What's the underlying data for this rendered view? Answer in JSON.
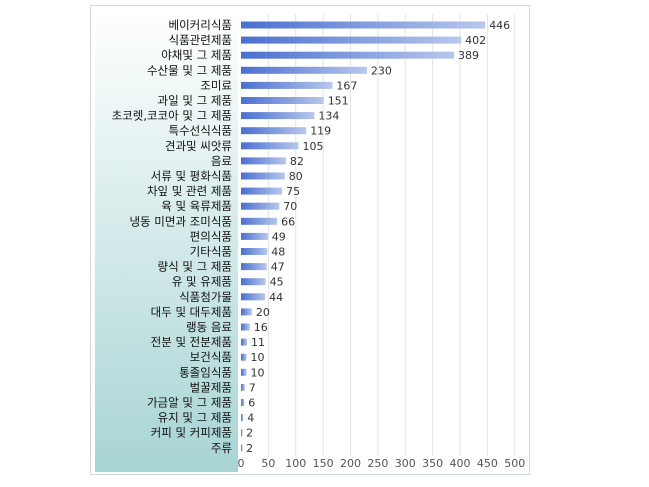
{
  "chart_data": {
    "type": "bar",
    "orientation": "horizontal",
    "categories": [
      "베이커리식품",
      "식품관련제품",
      "야채및 그 제품",
      "수산물 및 그 제품",
      "조미료",
      "과일 및 그 제품",
      "초코렛,코코아 및 그 제품",
      "특수선식식품",
      "견과및 씨앗류",
      "음료",
      "서류 및 평화식품",
      "차잎 및 관련 제품",
      "육 및 육류제품",
      "냉동 미면과 조미식품",
      "편의식품",
      "기타식품",
      "량식 및 그 제품",
      "유 및 유제품",
      "식품첨가물",
      "대두 및 대두제품",
      "랭동 음료",
      "전분 및 전분제품",
      "보건식품",
      "통졸임식품",
      "벌꿀제품",
      "가금알 및 그 제품",
      "유지 및 그 제품",
      "커피 및 커피제품",
      "주류"
    ],
    "values": [
      446,
      402,
      389,
      230,
      167,
      151,
      134,
      119,
      105,
      82,
      80,
      75,
      70,
      66,
      49,
      48,
      47,
      45,
      44,
      20,
      16,
      11,
      10,
      10,
      7,
      6,
      4,
      2,
      2
    ],
    "xticks": [
      "0",
      "50",
      "100",
      "150",
      "200",
      "250",
      "300",
      "350",
      "400",
      "450",
      "500"
    ],
    "xlim": [
      0,
      500
    ],
    "title": "",
    "xlabel": "",
    "ylabel": "",
    "grid": true,
    "legend": "none",
    "colors": {
      "bar_dark": "#4a6fd0",
      "bar_light": "#b7c7ec",
      "panel_top": "#ffffff",
      "panel_bottom": "#a8d4d4",
      "grid": "#e3e3e3",
      "label": "#111111",
      "value": "#333333",
      "tick": "#555555"
    }
  }
}
